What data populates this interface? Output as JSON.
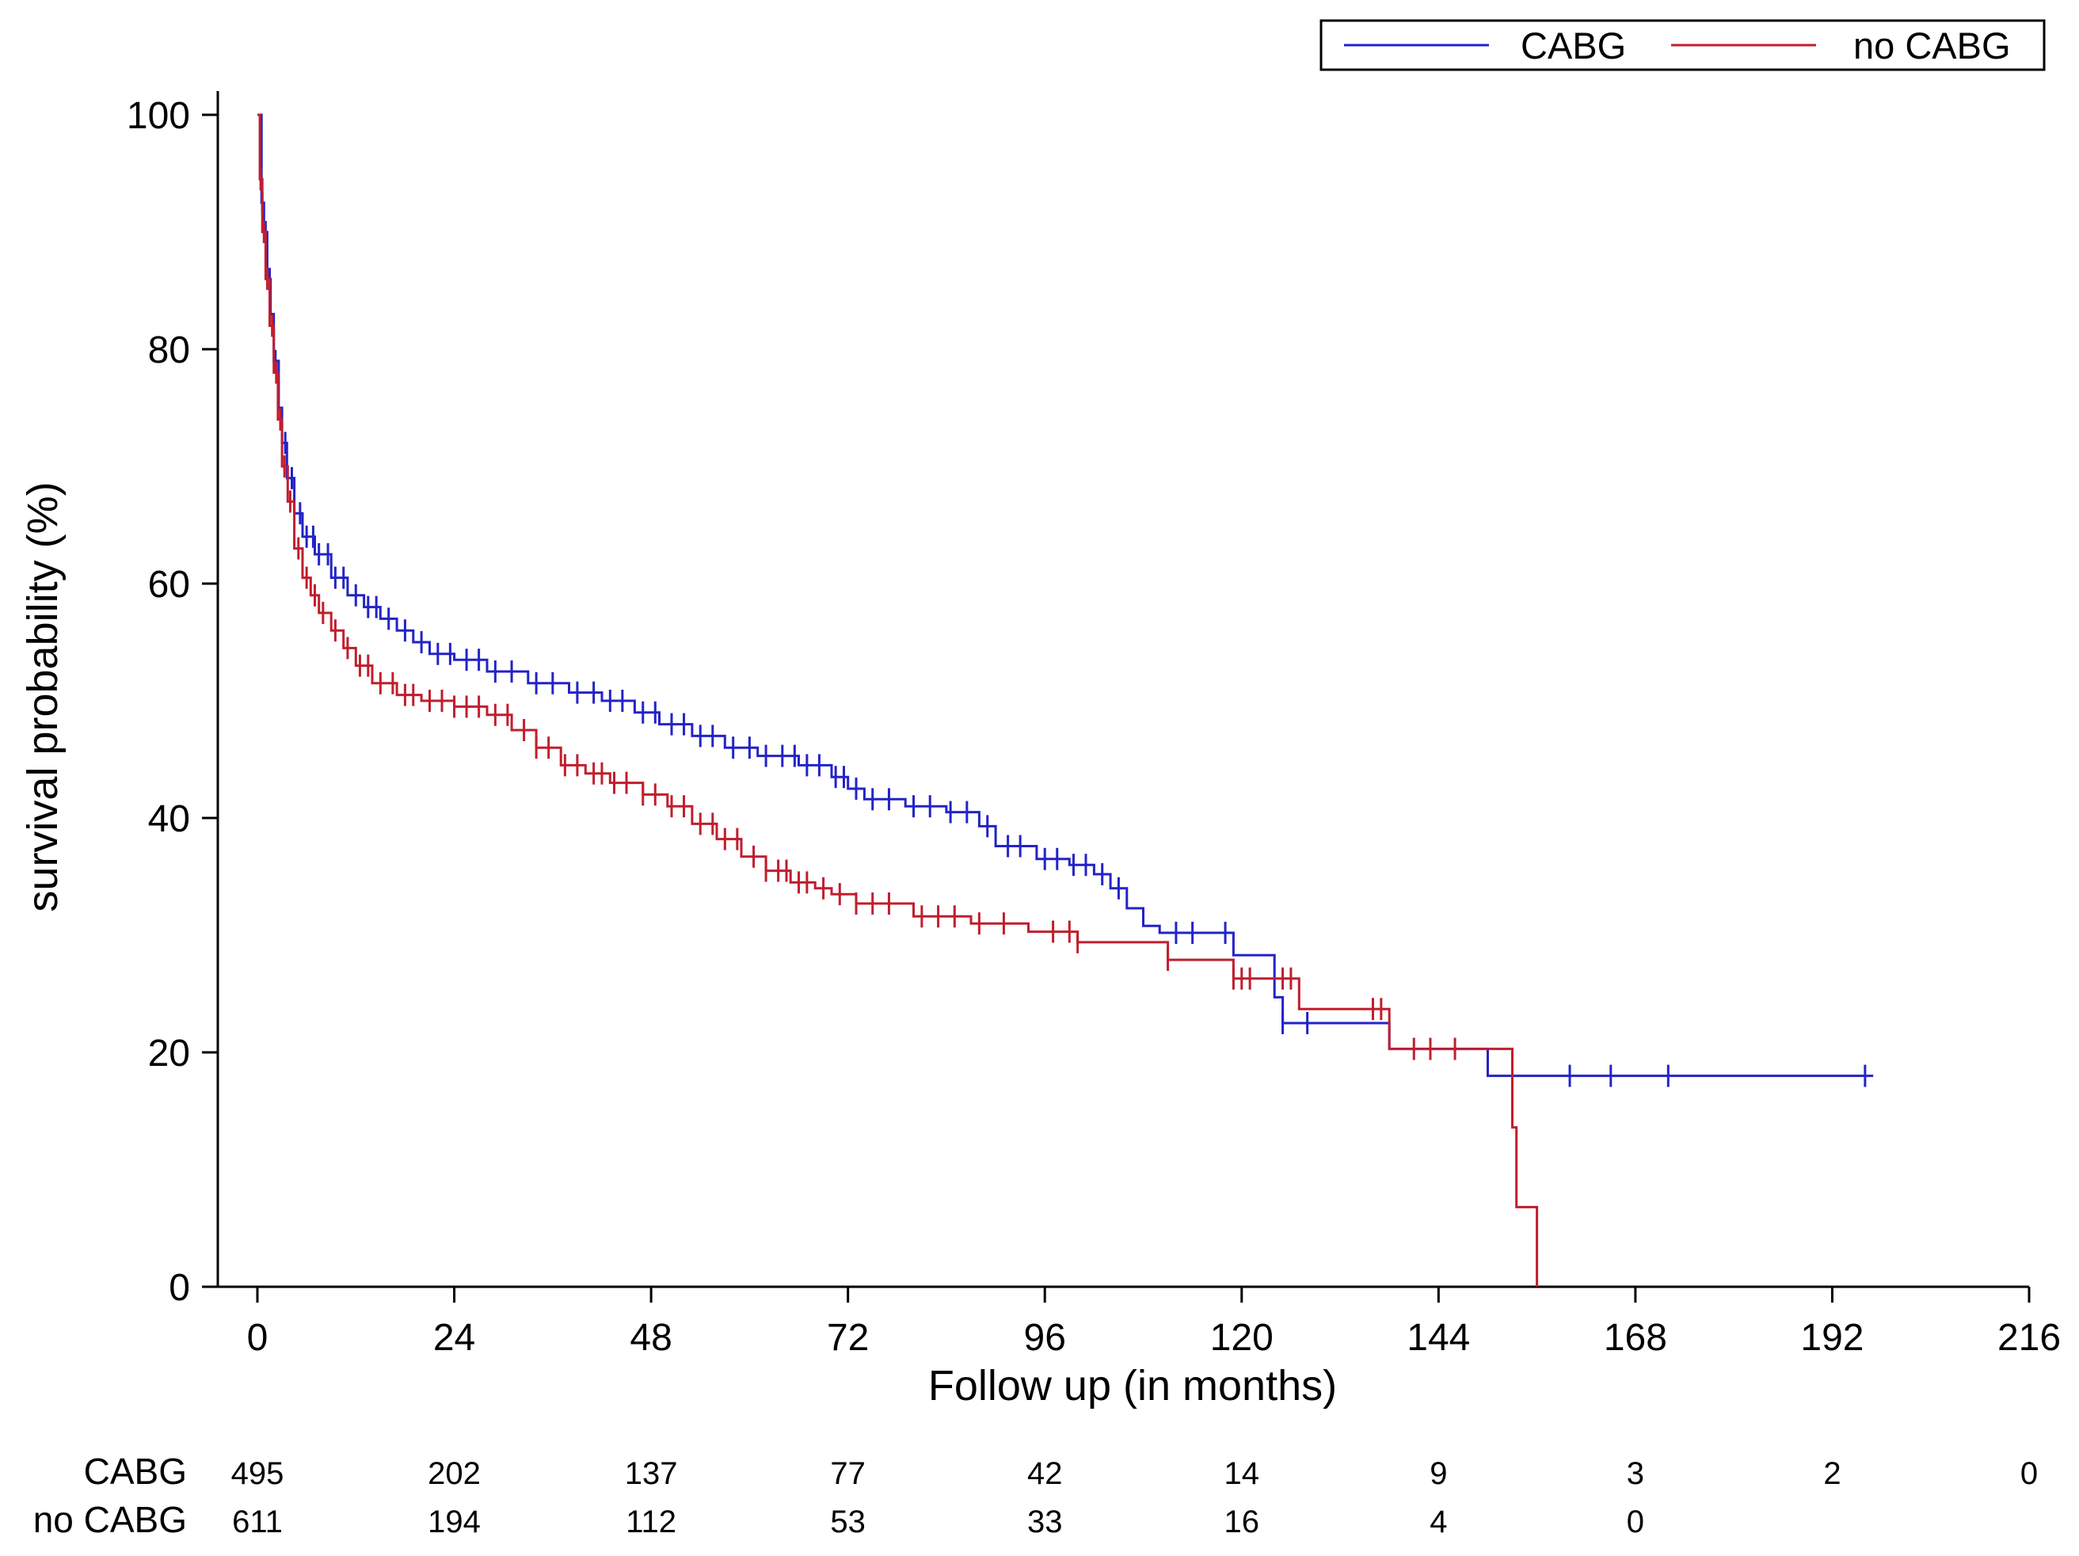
{
  "chart_data": {
    "type": "line",
    "title": "",
    "xlabel": "Follow up (in months)",
    "ylabel": "survival probability (%)",
    "xlim": [
      0,
      216
    ],
    "ylim": [
      0,
      100
    ],
    "xticks": [
      0,
      24,
      48,
      72,
      96,
      120,
      144,
      168,
      192,
      216
    ],
    "yticks": [
      0,
      20,
      40,
      60,
      80,
      100
    ],
    "x_tick_labels": [
      "0",
      "24",
      "48",
      "72",
      "96",
      "120",
      "144",
      "168",
      "192",
      "216"
    ],
    "y_tick_labels": [
      "0",
      "20",
      "40",
      "60",
      "80",
      "100"
    ],
    "grid": false,
    "legend_position": "top-right",
    "series": [
      {
        "name": "CABG",
        "color": "#2323c8",
        "step_points": [
          [
            0,
            100
          ],
          [
            0.5,
            92.5
          ],
          [
            0.8,
            90
          ],
          [
            1.2,
            86
          ],
          [
            1.6,
            83
          ],
          [
            2,
            79
          ],
          [
            2.6,
            75
          ],
          [
            3,
            72
          ],
          [
            3.6,
            69
          ],
          [
            4.5,
            66
          ],
          [
            5.5,
            64
          ],
          [
            7,
            62.5
          ],
          [
            9,
            60.5
          ],
          [
            11,
            59
          ],
          [
            13,
            58
          ],
          [
            15,
            57
          ],
          [
            17,
            56
          ],
          [
            19,
            55
          ],
          [
            21,
            54
          ],
          [
            24,
            53.5
          ],
          [
            28,
            52.5
          ],
          [
            33,
            51.5
          ],
          [
            38,
            50.7
          ],
          [
            42,
            50
          ],
          [
            46,
            49
          ],
          [
            49,
            48
          ],
          [
            53,
            47
          ],
          [
            57,
            46
          ],
          [
            61,
            45.3
          ],
          [
            66,
            44.5
          ],
          [
            70,
            43.5
          ],
          [
            72,
            42.5
          ],
          [
            74,
            41.6
          ],
          [
            79,
            41
          ],
          [
            84,
            40.5
          ],
          [
            88,
            39.3
          ],
          [
            90,
            37.6
          ],
          [
            95,
            36.5
          ],
          [
            99,
            36
          ],
          [
            102,
            35.2
          ],
          [
            104,
            34
          ],
          [
            106,
            32.3
          ],
          [
            108,
            30.8
          ],
          [
            110,
            30.2
          ],
          [
            119,
            28.3
          ],
          [
            124,
            24.7
          ],
          [
            125,
            22.5
          ],
          [
            138,
            20.3
          ],
          [
            150,
            18
          ],
          [
            197,
            18
          ]
        ],
        "censor_x": [
          0.6,
          1,
          1.5,
          2.2,
          3.4,
          4.2,
          5.2,
          6,
          6.8,
          7.5,
          8.6,
          9.5,
          10.5,
          12,
          13.5,
          14.5,
          16,
          18,
          20,
          22,
          23.5,
          25.5,
          27,
          29,
          31,
          34,
          36,
          39,
          41,
          43,
          44.5,
          47,
          48.5,
          50.5,
          52,
          54,
          55.5,
          58,
          60,
          62,
          64,
          65.5,
          67,
          68.5,
          70.5,
          71.5,
          73,
          75,
          77,
          80,
          82,
          84.5,
          86.5,
          89,
          91.5,
          93,
          96,
          97.5,
          99.5,
          101,
          103,
          105,
          112,
          114,
          118,
          125,
          128,
          160,
          165,
          172,
          196
        ]
      },
      {
        "name": "no CABG",
        "color": "#c01e2e",
        "step_points": [
          [
            0,
            100
          ],
          [
            0.3,
            94.5
          ],
          [
            0.6,
            90
          ],
          [
            1,
            86
          ],
          [
            1.5,
            82
          ],
          [
            2,
            78
          ],
          [
            2.5,
            74
          ],
          [
            3,
            70
          ],
          [
            3.7,
            67
          ],
          [
            4.5,
            63
          ],
          [
            5.5,
            60.5
          ],
          [
            6.5,
            59
          ],
          [
            7.5,
            57.5
          ],
          [
            9,
            56
          ],
          [
            10.5,
            54.5
          ],
          [
            12,
            53
          ],
          [
            14,
            51.5
          ],
          [
            17,
            50.5
          ],
          [
            20,
            50
          ],
          [
            24,
            49.5
          ],
          [
            28,
            48.8
          ],
          [
            31,
            47.5
          ],
          [
            34,
            46
          ],
          [
            37,
            44.5
          ],
          [
            40,
            43.8
          ],
          [
            43,
            43
          ],
          [
            47,
            42
          ],
          [
            50,
            41
          ],
          [
            53,
            39.5
          ],
          [
            56,
            38.2
          ],
          [
            59,
            36.7
          ],
          [
            62,
            35.5
          ],
          [
            65,
            34.5
          ],
          [
            68,
            34
          ],
          [
            70,
            33.5
          ],
          [
            73,
            32.7
          ],
          [
            80,
            31.6
          ],
          [
            87,
            31
          ],
          [
            94,
            30.3
          ],
          [
            100,
            29.4
          ],
          [
            111,
            27.9
          ],
          [
            119,
            26.3
          ],
          [
            127,
            23.7
          ],
          [
            138,
            20.3
          ],
          [
            153,
            13.6
          ],
          [
            153.5,
            6.8
          ],
          [
            156,
            0
          ]
        ],
        "censor_x": [
          0.4,
          0.8,
          1.2,
          1.8,
          2.3,
          2.8,
          3.3,
          4,
          5,
          6,
          7,
          8,
          9.5,
          11,
          12.5,
          13.5,
          15,
          16.5,
          18,
          19,
          21,
          22.5,
          24,
          25.5,
          27,
          29,
          30.5,
          32.5,
          34,
          35.5,
          37.5,
          39,
          41,
          42,
          43.5,
          45,
          47,
          48.5,
          50.5,
          52,
          54,
          55.5,
          57,
          58.5,
          60.5,
          62,
          63.5,
          64.5,
          66,
          67,
          69,
          71,
          73,
          75,
          77,
          81,
          83,
          85,
          88,
          91,
          97,
          99,
          100,
          111,
          119,
          120,
          121,
          125,
          126,
          136,
          137,
          141,
          143,
          146
        ]
      }
    ],
    "risk_table": {
      "times": [
        0,
        24,
        48,
        72,
        96,
        120,
        144,
        168,
        192,
        216
      ],
      "rows": [
        {
          "label": "CABG",
          "values": [
            "495",
            "202",
            "137",
            "77",
            "42",
            "14",
            "9",
            "3",
            "2",
            "0"
          ]
        },
        {
          "label": "no CABG",
          "values": [
            "611",
            "194",
            "112",
            "53",
            "33",
            "16",
            "4",
            "0",
            "",
            ""
          ]
        }
      ]
    }
  }
}
